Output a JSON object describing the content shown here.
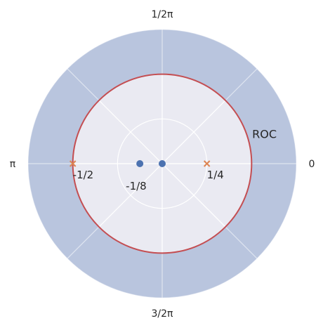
{
  "chart_data": {
    "type": "scatter",
    "projection": "polar",
    "title": "",
    "angle_tick_labels": [
      "0",
      "1/2π",
      "π",
      "3/2π"
    ],
    "radius_ticks": [
      0.5,
      1.0,
      1.5
    ],
    "rlim": [
      0,
      1.5
    ],
    "grid": true,
    "unit_circle_radius": 1.0,
    "roc": {
      "label": "ROC",
      "inner_radius": 1.0,
      "outer_radius": 1.5,
      "color": "#b9c5de"
    },
    "zeros": {
      "marker": "circle",
      "color": "#4c72b0",
      "points": [
        {
          "x": -0.25,
          "y": 0,
          "label": "-1/8"
        },
        {
          "x": 0,
          "y": 0,
          "label": ""
        }
      ]
    },
    "poles": {
      "marker": "x",
      "color": "#dd8452",
      "points": [
        {
          "x": -1.0,
          "y": 0,
          "label": "-1/2"
        },
        {
          "x": 0.5,
          "y": 0,
          "label": "1/4"
        }
      ]
    },
    "colors": {
      "axes_face": "#eaeaf2",
      "grid": "#ffffff",
      "unit_circle": "#c44e52"
    }
  }
}
